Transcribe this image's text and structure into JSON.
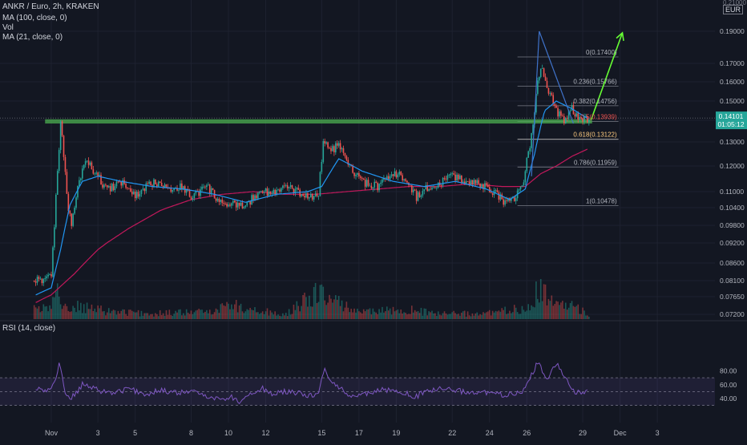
{
  "legend": {
    "symbol_line": "ANKR / Euro, 2h, KRAKEN",
    "ma100": "MA (100, close, 0)",
    "vol": "Vol",
    "ma21": "MA (21, close, 0)",
    "rsi": "RSI (14, close)"
  },
  "currency": "EUR",
  "price_top_cut": "0.21000",
  "current_price": {
    "value": "0.14101",
    "countdown": "01:05:12"
  },
  "colors": {
    "background": "#131722",
    "up": "#26a69a",
    "down": "#ef5350",
    "ma21": "#2196f3",
    "ma100": "#c2185b",
    "rsi": "#7e57c2",
    "support_zone": "#4caf50",
    "arrow": "#66ff33",
    "triangle": "#3f72c9"
  },
  "chart_data": {
    "type": "candlestick",
    "price_axis": {
      "ticks": [
        "0.19000",
        "0.17000",
        "0.16000",
        "0.15000",
        "0.14000",
        "0.13000",
        "0.12000",
        "0.11000",
        "0.10400",
        "0.09800",
        "0.09200",
        "0.08600",
        "0.08100",
        "0.07650",
        "0.07200"
      ],
      "tick_values": [
        0.19,
        0.17,
        0.16,
        0.15,
        0.14,
        0.13,
        0.12,
        0.11,
        0.104,
        0.098,
        0.092,
        0.086,
        0.081,
        0.0765,
        0.072
      ]
    },
    "time_axis": {
      "labels": [
        "Nov",
        "3",
        "5",
        "8",
        "10",
        "12",
        "15",
        "17",
        "19",
        "22",
        "24",
        "26",
        "29",
        "Dec",
        "3"
      ],
      "label_hours": [
        0,
        60,
        108,
        180,
        228,
        276,
        348,
        396,
        444,
        516,
        564,
        612,
        684,
        732,
        780
      ]
    },
    "price_series": [
      [
        -20,
        0.081
      ],
      [
        -8,
        0.0808
      ],
      [
        0,
        0.083
      ],
      [
        4,
        0.098
      ],
      [
        8,
        0.118
      ],
      [
        12,
        0.139
      ],
      [
        16,
        0.124
      ],
      [
        20,
        0.108
      ],
      [
        26,
        0.097
      ],
      [
        34,
        0.112
      ],
      [
        44,
        0.122
      ],
      [
        50,
        0.12
      ],
      [
        58,
        0.117
      ],
      [
        66,
        0.113
      ],
      [
        76,
        0.111
      ],
      [
        88,
        0.114
      ],
      [
        100,
        0.111
      ],
      [
        112,
        0.108
      ],
      [
        126,
        0.113
      ],
      [
        140,
        0.114
      ],
      [
        154,
        0.111
      ],
      [
        168,
        0.112
      ],
      [
        180,
        0.108
      ],
      [
        190,
        0.11
      ],
      [
        200,
        0.112
      ],
      [
        212,
        0.108
      ],
      [
        222,
        0.104
      ],
      [
        232,
        0.106
      ],
      [
        242,
        0.104
      ],
      [
        252,
        0.106
      ],
      [
        262,
        0.108
      ],
      [
        272,
        0.111
      ],
      [
        284,
        0.109
      ],
      [
        300,
        0.112
      ],
      [
        316,
        0.11
      ],
      [
        332,
        0.108
      ],
      [
        344,
        0.109
      ],
      [
        350,
        0.13
      ],
      [
        360,
        0.127
      ],
      [
        370,
        0.128
      ],
      [
        380,
        0.122
      ],
      [
        392,
        0.116
      ],
      [
        406,
        0.113
      ],
      [
        420,
        0.112
      ],
      [
        432,
        0.115
      ],
      [
        446,
        0.117
      ],
      [
        458,
        0.114
      ],
      [
        470,
        0.108
      ],
      [
        486,
        0.112
      ],
      [
        500,
        0.113
      ],
      [
        514,
        0.116
      ],
      [
        526,
        0.115
      ],
      [
        540,
        0.114
      ],
      [
        556,
        0.112
      ],
      [
        570,
        0.11
      ],
      [
        584,
        0.106
      ],
      [
        596,
        0.108
      ],
      [
        606,
        0.111
      ],
      [
        614,
        0.126
      ],
      [
        620,
        0.136
      ],
      [
        626,
        0.16
      ],
      [
        632,
        0.168
      ],
      [
        640,
        0.156
      ],
      [
        650,
        0.145
      ],
      [
        660,
        0.14
      ],
      [
        670,
        0.146
      ],
      [
        680,
        0.14
      ],
      [
        690,
        0.141
      ]
    ],
    "ma21": [
      [
        -20,
        0.077
      ],
      [
        0,
        0.079
      ],
      [
        12,
        0.09
      ],
      [
        24,
        0.105
      ],
      [
        40,
        0.114
      ],
      [
        60,
        0.116
      ],
      [
        90,
        0.114
      ],
      [
        130,
        0.112
      ],
      [
        170,
        0.111
      ],
      [
        210,
        0.109
      ],
      [
        250,
        0.106
      ],
      [
        290,
        0.109
      ],
      [
        330,
        0.11
      ],
      [
        348,
        0.112
      ],
      [
        370,
        0.123
      ],
      [
        400,
        0.118
      ],
      [
        440,
        0.114
      ],
      [
        480,
        0.112
      ],
      [
        520,
        0.114
      ],
      [
        560,
        0.111
      ],
      [
        590,
        0.107
      ],
      [
        610,
        0.111
      ],
      [
        622,
        0.125
      ],
      [
        635,
        0.145
      ],
      [
        650,
        0.15
      ],
      [
        670,
        0.146
      ],
      [
        690,
        0.141
      ]
    ],
    "ma100": [
      [
        -20,
        0.075
      ],
      [
        0,
        0.077
      ],
      [
        30,
        0.083
      ],
      [
        60,
        0.09
      ],
      [
        100,
        0.097
      ],
      [
        140,
        0.103
      ],
      [
        180,
        0.107
      ],
      [
        220,
        0.109
      ],
      [
        260,
        0.11
      ],
      [
        300,
        0.109
      ],
      [
        340,
        0.109
      ],
      [
        380,
        0.11
      ],
      [
        420,
        0.111
      ],
      [
        460,
        0.112
      ],
      [
        500,
        0.112
      ],
      [
        540,
        0.113
      ],
      [
        580,
        0.112
      ],
      [
        610,
        0.112
      ],
      [
        630,
        0.117
      ],
      [
        650,
        0.12
      ],
      [
        670,
        0.124
      ],
      [
        690,
        0.127
      ]
    ],
    "volume_relative": [
      [
        0,
        0.3
      ],
      [
        4,
        0.6
      ],
      [
        8,
        0.9
      ],
      [
        12,
        0.5
      ],
      [
        16,
        0.3
      ],
      [
        30,
        0.35
      ],
      [
        60,
        0.25
      ],
      [
        120,
        0.15
      ],
      [
        200,
        0.2
      ],
      [
        230,
        0.4
      ],
      [
        300,
        0.1
      ],
      [
        348,
        0.8
      ],
      [
        352,
        0.6
      ],
      [
        400,
        0.2
      ],
      [
        460,
        0.25
      ],
      [
        500,
        0.15
      ],
      [
        560,
        0.15
      ],
      [
        610,
        0.3
      ],
      [
        620,
        0.55
      ],
      [
        626,
        0.9
      ],
      [
        632,
        0.7
      ],
      [
        650,
        0.4
      ],
      [
        680,
        0.3
      ],
      [
        690,
        0.1
      ]
    ],
    "rsi": {
      "ticks": [
        "80.00",
        "60.00",
        "40.00"
      ],
      "tick_values": [
        80,
        60,
        40
      ],
      "bands": [
        70,
        50,
        30
      ],
      "series": [
        [
          -20,
          55
        ],
        [
          -6,
          50
        ],
        [
          0,
          55
        ],
        [
          6,
          70
        ],
        [
          10,
          90
        ],
        [
          14,
          72
        ],
        [
          18,
          50
        ],
        [
          24,
          40
        ],
        [
          30,
          45
        ],
        [
          40,
          60
        ],
        [
          50,
          56
        ],
        [
          60,
          52
        ],
        [
          80,
          48
        ],
        [
          100,
          54
        ],
        [
          120,
          46
        ],
        [
          140,
          52
        ],
        [
          160,
          48
        ],
        [
          180,
          50
        ],
        [
          200,
          44
        ],
        [
          220,
          38
        ],
        [
          232,
          42
        ],
        [
          242,
          36
        ],
        [
          252,
          44
        ],
        [
          262,
          50
        ],
        [
          272,
          54
        ],
        [
          284,
          46
        ],
        [
          300,
          50
        ],
        [
          316,
          48
        ],
        [
          332,
          44
        ],
        [
          344,
          46
        ],
        [
          348,
          72
        ],
        [
          352,
          82
        ],
        [
          360,
          62
        ],
        [
          372,
          56
        ],
        [
          384,
          44
        ],
        [
          396,
          44
        ],
        [
          410,
          48
        ],
        [
          426,
          52
        ],
        [
          442,
          52
        ],
        [
          456,
          48
        ],
        [
          466,
          40
        ],
        [
          480,
          50
        ],
        [
          500,
          54
        ],
        [
          516,
          52
        ],
        [
          532,
          50
        ],
        [
          548,
          48
        ],
        [
          566,
          48
        ],
        [
          584,
          44
        ],
        [
          596,
          48
        ],
        [
          606,
          50
        ],
        [
          614,
          68
        ],
        [
          620,
          78
        ],
        [
          626,
          92
        ],
        [
          632,
          80
        ],
        [
          638,
          66
        ],
        [
          646,
          84
        ],
        [
          652,
          88
        ],
        [
          660,
          72
        ],
        [
          670,
          52
        ],
        [
          680,
          48
        ],
        [
          690,
          50
        ]
      ]
    },
    "fibonacci": [
      {
        "label": "0(0.17400)",
        "value": 0.174
      },
      {
        "label": "0.236(0.15766)",
        "value": 0.15766
      },
      {
        "label": "0.382(0.14756)",
        "value": 0.14756
      },
      {
        "label": "0.5(0.13939)",
        "value": 0.13939
      },
      {
        "label": "0.618(0.13122)",
        "value": 0.13122
      },
      {
        "label": "0.786(0.11959)",
        "value": 0.11959
      },
      {
        "label": "1(0.10478)",
        "value": 0.10478
      }
    ],
    "support_zone": {
      "price_low": 0.1385,
      "price_high": 0.1405,
      "hour_start": -8,
      "hour_end": 696
    },
    "arrow": {
      "from": [
        695,
        0.1405
      ],
      "to": [
        735,
        0.189
      ]
    },
    "triangle": {
      "apex": [
        628,
        0.19
      ],
      "top_side_end": [
        672,
        0.1385
      ],
      "bottom_start": [
        618,
        0.116
      ],
      "bottom_end": [
        672,
        0.1385
      ]
    }
  }
}
